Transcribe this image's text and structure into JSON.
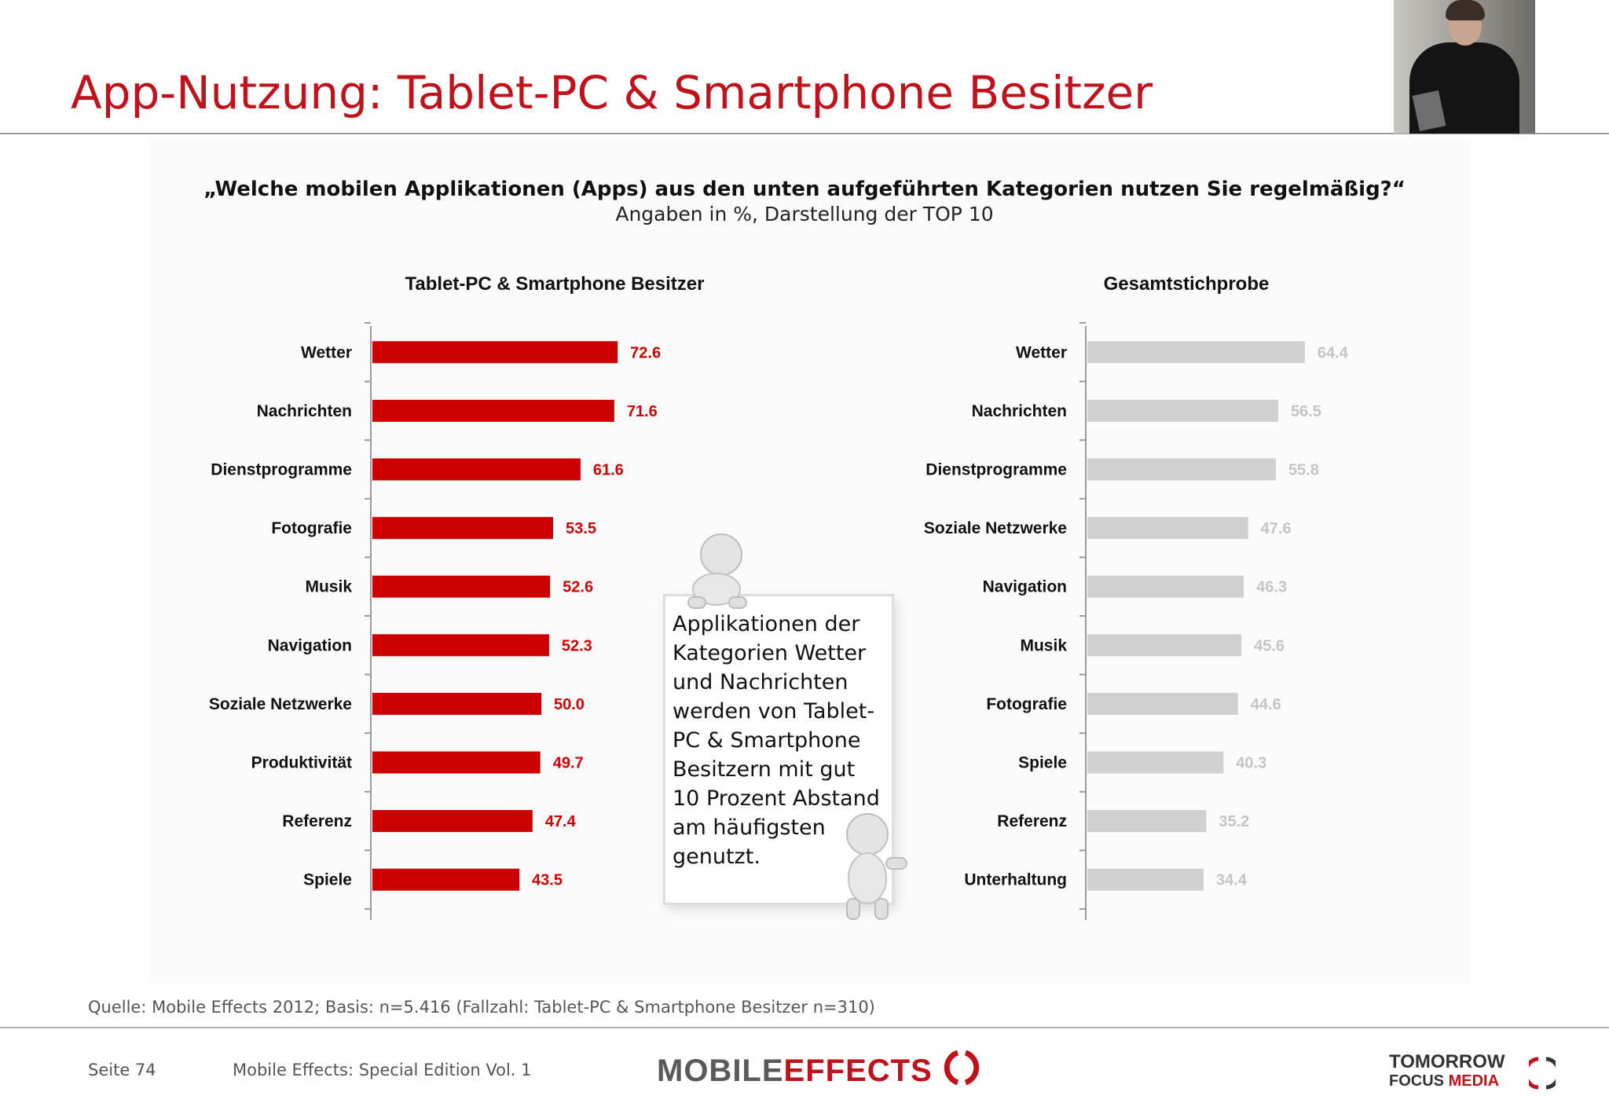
{
  "slide": {
    "title": "App-Nutzung: Tablet-PC & Smartphone Besitzer",
    "question": "„Welche mobilen Applikationen (Apps) aus den unten aufgeführten Kategorien nutzen Sie regelmäßig?“",
    "subtitle": "Angaben in %, Darstellung der TOP 10"
  },
  "colors": {
    "accent": "#c0121b",
    "bar_primary": "#cc0000",
    "bar_secondary": "#d0d0d0",
    "label_secondary": "#c4c4c4"
  },
  "chart_data": [
    {
      "type": "bar",
      "orientation": "horizontal",
      "title": "Tablet-PC & Smartphone Besitzer",
      "categories": [
        "Wetter",
        "Nachrichten",
        "Dienstprogramme",
        "Fotografie",
        "Musik",
        "Navigation",
        "Soziale Netzwerke",
        "Produktivität",
        "Referenz",
        "Spiele"
      ],
      "values": [
        72.6,
        71.6,
        61.6,
        53.5,
        52.6,
        52.3,
        50.0,
        49.7,
        47.4,
        43.5
      ],
      "value_labels": [
        "72.6",
        "71.6",
        "61.6",
        "53.5",
        "52.6",
        "52.3",
        "50.0",
        "49.7",
        "47.4",
        "43.5"
      ],
      "xlim": [
        0,
        100
      ],
      "grid": false,
      "color": "#cc0000"
    },
    {
      "type": "bar",
      "orientation": "horizontal",
      "title": "Gesamtstichprobe",
      "categories": [
        "Wetter",
        "Nachrichten",
        "Dienstprogramme",
        "Soziale Netzwerke",
        "Navigation",
        "Musik",
        "Fotografie",
        "Spiele",
        "Referenz",
        "Unterhaltung"
      ],
      "values": [
        64.4,
        56.5,
        55.8,
        47.6,
        46.3,
        45.6,
        44.6,
        40.3,
        35.2,
        34.4
      ],
      "value_labels": [
        "64.4",
        "56.5",
        "55.8",
        "47.6",
        "46.3",
        "45.6",
        "44.6",
        "40.3",
        "35.2",
        "34.4"
      ],
      "xlim": [
        0,
        100
      ],
      "grid": false,
      "color": "#d0d0d0"
    }
  ],
  "callout": {
    "text": "Applikationen der Kategorien Wetter und Nachrichten werden von Tablet-PC & Smartphone Besitzern mit gut 10 Prozent Abstand am häufigsten genutzt."
  },
  "footer": {
    "source": "Quelle: Mobile Effects 2012; Basis: n=5.416 (Fallzahl: Tablet-PC & Smartphone Besitzer n=310)",
    "page": "Seite 74",
    "publication": "Mobile Effects: Special Edition Vol. 1",
    "logo_mobile_part1": "MOBILE",
    "logo_mobile_part2": "EFFECTS",
    "logo_tfm_line1": "TOMORROW",
    "logo_tfm_line2a": "FOCUS",
    "logo_tfm_line2b": "MEDIA"
  }
}
